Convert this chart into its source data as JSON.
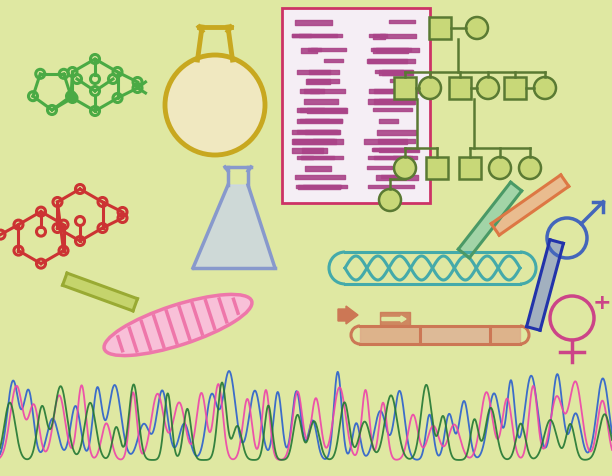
{
  "bg_color": "#dfe8a2",
  "fig_width": 6.12,
  "fig_height": 4.76,
  "dpi": 100,
  "green_mol_color": "#4aaa44",
  "red_mol_color": "#cc3333",
  "flask_round_color": "#c8a820",
  "flask_erlen_color": "#8899cc",
  "gel_border_color": "#cc3366",
  "gel_band_color": "#aa4488",
  "gel_bg_color": "#f5eef5",
  "pedigree_color": "#5a7a33",
  "pedigree_fill": "#c8d878",
  "tube_yellow_color": "#99aa33",
  "tube_green_color": "#4a9966",
  "tube_orange_color": "#dd7744",
  "tube_blue_color": "#2233aa",
  "helix_color": "#44aaaa",
  "pink_helix_color": "#ee77aa",
  "construct_color": "#cc7755",
  "male_color": "#4466bb",
  "female_color": "#cc4488",
  "chrom_blue": "#3366cc",
  "chrom_pink": "#ee44aa",
  "chrom_green": "#227733"
}
